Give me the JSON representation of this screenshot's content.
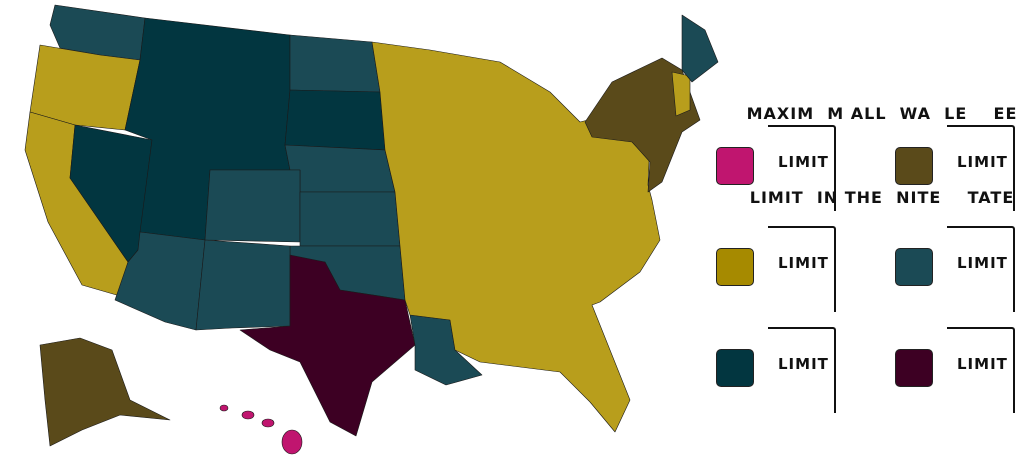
{
  "title": {
    "line1": "MAXIM  M ALL  WA  LE    EE",
    "line2": "LIMIT  IN THE  NITE    TATE"
  },
  "legend": [
    {
      "label": "LIMIT",
      "color": "#c0156f"
    },
    {
      "label": "LIMIT",
      "color": "#5a4a1a"
    },
    {
      "label": "LIMIT",
      "color": "#a68a00"
    },
    {
      "label": "LIMIT",
      "color": "#1b4a55"
    },
    {
      "label": "LIMIT",
      "color": "#023640"
    },
    {
      "label": "LIMIT",
      "color": "#3d0023"
    }
  ],
  "map_colors": {
    "gold": "#b89e1c"
  }
}
